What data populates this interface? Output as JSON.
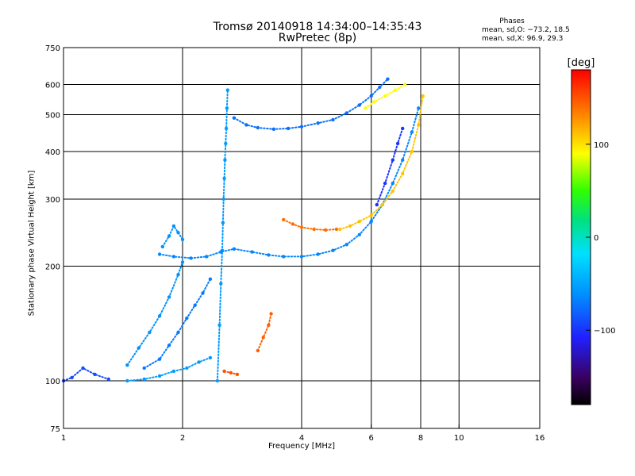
{
  "header": {
    "title": "Tromsø 20140918 14:34:00–14:35:43",
    "subtitle": "RwPretec (8p)"
  },
  "stats": {
    "title": "Phases",
    "line_o": "mean, sd,O: −73.2, 18.5",
    "line_x": "mean, sd,X:  96.9, 29.3"
  },
  "colorbar": {
    "unit": "[deg]",
    "ticks": [
      {
        "value": 100,
        "label": "100"
      },
      {
        "value": 0,
        "label": "0"
      },
      {
        "value": -100,
        "label": "−100"
      }
    ],
    "range": [
      -180,
      180
    ]
  },
  "chart_data": {
    "type": "scatter",
    "xlabel": "Frequency [MHz]",
    "ylabel": "Stationary phase Virtual Height [km]",
    "x_scale": "log",
    "y_scale": "log",
    "xlim": [
      1,
      16
    ],
    "ylim": [
      75,
      750
    ],
    "x_ticks": [
      {
        "value": 1,
        "label": "1"
      },
      {
        "value": 2,
        "label": "2"
      },
      {
        "value": 4,
        "label": "4"
      },
      {
        "value": 6,
        "label": "6"
      },
      {
        "value": 8,
        "label": "8"
      },
      {
        "value": 10,
        "label": "10"
      },
      {
        "value": 16,
        "label": "16"
      }
    ],
    "y_ticks": [
      {
        "value": 75,
        "label": "75"
      },
      {
        "value": 100,
        "label": "100"
      },
      {
        "value": 200,
        "label": "200"
      },
      {
        "value": 300,
        "label": "300"
      },
      {
        "value": 400,
        "label": "400"
      },
      {
        "value": 500,
        "label": "500"
      },
      {
        "value": 600,
        "label": "600"
      },
      {
        "value": 750,
        "label": "750"
      }
    ],
    "grid": true,
    "color_scale": "phase",
    "series": [
      {
        "type": "trace",
        "phase": -90,
        "points": [
          [
            1.0,
            100
          ],
          [
            1.05,
            102
          ],
          [
            1.12,
            108
          ],
          [
            1.2,
            104
          ],
          [
            1.3,
            101
          ]
        ]
      },
      {
        "type": "trace",
        "phase": -55,
        "points": [
          [
            1.45,
            100
          ],
          [
            1.6,
            101
          ],
          [
            1.75,
            103
          ],
          [
            1.9,
            106
          ],
          [
            2.05,
            108
          ],
          [
            2.2,
            112
          ],
          [
            2.35,
            115
          ]
        ]
      },
      {
        "type": "trace",
        "phase": -70,
        "points": [
          [
            1.6,
            108
          ],
          [
            1.75,
            114
          ],
          [
            1.85,
            124
          ],
          [
            1.95,
            134
          ],
          [
            2.05,
            146
          ],
          [
            2.15,
            158
          ],
          [
            2.25,
            170
          ],
          [
            2.35,
            185
          ]
        ]
      },
      {
        "type": "trace",
        "phase": -60,
        "points": [
          [
            1.45,
            110
          ],
          [
            1.55,
            122
          ],
          [
            1.65,
            134
          ],
          [
            1.75,
            148
          ],
          [
            1.85,
            166
          ],
          [
            1.95,
            190
          ],
          [
            2.0,
            205
          ]
        ]
      },
      {
        "type": "trace",
        "phase": -55,
        "points": [
          [
            2.45,
            100
          ],
          [
            2.48,
            140
          ],
          [
            2.5,
            180
          ],
          [
            2.52,
            220
          ],
          [
            2.53,
            260
          ],
          [
            2.54,
            300
          ],
          [
            2.55,
            340
          ],
          [
            2.56,
            380
          ],
          [
            2.57,
            420
          ],
          [
            2.58,
            460
          ],
          [
            2.59,
            520
          ],
          [
            2.6,
            580
          ]
        ]
      },
      {
        "type": "trace",
        "phase": -65,
        "points": [
          [
            1.75,
            215
          ],
          [
            1.9,
            212
          ],
          [
            2.1,
            210
          ],
          [
            2.3,
            212
          ],
          [
            2.5,
            218
          ],
          [
            2.7,
            222
          ],
          [
            3.0,
            218
          ],
          [
            3.3,
            214
          ],
          [
            3.6,
            212
          ],
          [
            4.0,
            212
          ],
          [
            4.4,
            215
          ],
          [
            4.8,
            220
          ],
          [
            5.2,
            228
          ],
          [
            5.6,
            242
          ],
          [
            6.0,
            262
          ],
          [
            6.4,
            290
          ],
          [
            6.8,
            330
          ],
          [
            7.2,
            380
          ],
          [
            7.6,
            450
          ],
          [
            7.9,
            520
          ]
        ]
      },
      {
        "type": "trace",
        "phase": -60,
        "points": [
          [
            1.78,
            225
          ],
          [
            1.85,
            240
          ],
          [
            1.9,
            255
          ],
          [
            1.95,
            245
          ],
          [
            2.0,
            235
          ]
        ]
      },
      {
        "type": "trace",
        "phase": -75,
        "points": [
          [
            2.7,
            490
          ],
          [
            2.9,
            470
          ],
          [
            3.1,
            462
          ],
          [
            3.4,
            458
          ],
          [
            3.7,
            460
          ],
          [
            4.0,
            465
          ],
          [
            4.4,
            475
          ],
          [
            4.8,
            485
          ],
          [
            5.2,
            505
          ],
          [
            5.6,
            530
          ],
          [
            6.0,
            560
          ],
          [
            6.3,
            590
          ],
          [
            6.6,
            620
          ]
        ]
      },
      {
        "type": "trace",
        "phase": 140,
        "points": [
          [
            3.6,
            265
          ],
          [
            3.8,
            258
          ],
          [
            4.0,
            253
          ],
          [
            4.3,
            250
          ],
          [
            4.6,
            249
          ],
          [
            4.9,
            250
          ]
        ]
      },
      {
        "type": "trace",
        "phase": 110,
        "points": [
          [
            5.0,
            250
          ],
          [
            5.3,
            255
          ],
          [
            5.6,
            262
          ],
          [
            6.0,
            272
          ],
          [
            6.4,
            290
          ],
          [
            6.8,
            315
          ],
          [
            7.2,
            350
          ],
          [
            7.6,
            400
          ],
          [
            7.9,
            470
          ],
          [
            8.1,
            560
          ]
        ]
      },
      {
        "type": "trace",
        "phase": -100,
        "points": [
          [
            6.2,
            290
          ],
          [
            6.5,
            330
          ],
          [
            6.8,
            380
          ],
          [
            7.0,
            420
          ],
          [
            7.2,
            460
          ]
        ]
      },
      {
        "type": "trace",
        "phase": 145,
        "points": [
          [
            3.1,
            120
          ],
          [
            3.2,
            130
          ],
          [
            3.3,
            140
          ],
          [
            3.35,
            150
          ]
        ]
      },
      {
        "type": "trace",
        "phase": 150,
        "points": [
          [
            2.55,
            106
          ],
          [
            2.65,
            105
          ],
          [
            2.75,
            104
          ]
        ]
      },
      {
        "type": "trace",
        "phase": 90,
        "points": [
          [
            5.8,
            520
          ],
          [
            6.1,
            540
          ],
          [
            6.5,
            560
          ],
          [
            6.9,
            580
          ],
          [
            7.3,
            600
          ]
        ]
      }
    ]
  }
}
